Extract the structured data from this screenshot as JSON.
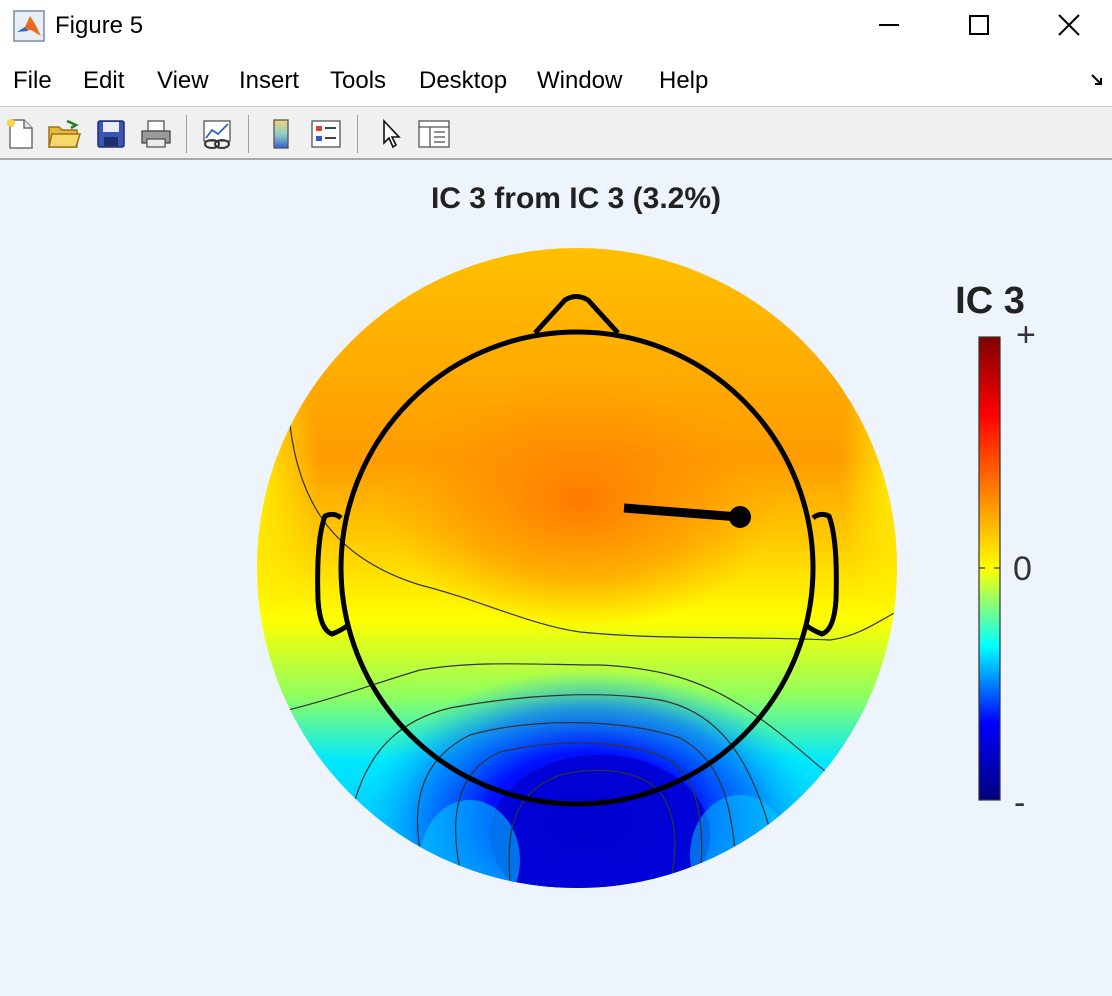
{
  "window": {
    "title": "Figure 5",
    "controls": [
      "minimize",
      "maximize",
      "close"
    ]
  },
  "menu": [
    "File",
    "Edit",
    "View",
    "Insert",
    "Tools",
    "Desktop",
    "Window",
    "Help"
  ],
  "toolbar": [
    "new-figure-icon",
    "open-file-icon",
    "save-icon",
    "print-icon",
    "link-plot-icon",
    "colorbar-icon",
    "legend-icon",
    "pointer-icon",
    "property-inspector-icon"
  ],
  "plot": {
    "title": "IC 3 from IC 3 (3.2%)"
  },
  "colorbar": {
    "title": "IC 3",
    "max_label": "+",
    "mid_label": "0",
    "min_label": "-",
    "colors": [
      "#00007f",
      "#0000ff",
      "#00ffff",
      "#ffff00",
      "#ff8000",
      "#ff0000",
      "#7f0000"
    ]
  },
  "dipole": {
    "color": "#000000"
  }
}
